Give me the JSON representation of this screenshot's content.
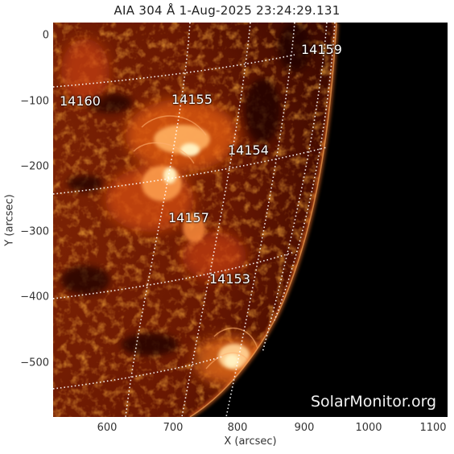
{
  "title": "AIA 304 Å  1-Aug-2025 23:24:29.131",
  "xlabel": "X (arcsec)",
  "ylabel": "Y (arcsec)",
  "watermark": "SolarMonitor.org",
  "x_ticks": [
    "600",
    "700",
    "800",
    "900",
    "1000",
    "1100"
  ],
  "y_ticks": [
    "0",
    "−100",
    "−200",
    "−300",
    "−400",
    "−500"
  ],
  "active_regions": [
    {
      "name": "14159"
    },
    {
      "name": "14160"
    },
    {
      "name": "14155"
    },
    {
      "name": "14154"
    },
    {
      "name": "14157"
    },
    {
      "name": "14153"
    }
  ],
  "colors": {
    "background": "#000000",
    "solar_disk_base": "#5a0e00",
    "solar_bright": "#ffe0a0",
    "grid": "#ffffff"
  }
}
